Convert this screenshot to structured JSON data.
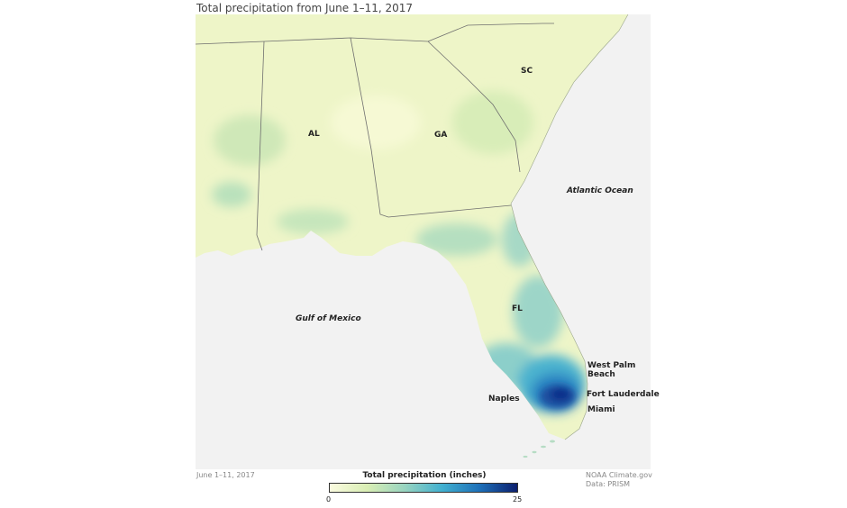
{
  "title": "Total precipitation from June 1–11, 2017",
  "map": {
    "states": [
      "AL",
      "GA",
      "SC",
      "FL"
    ],
    "water_bodies": [
      "Atlantic Ocean",
      "Gulf of Mexico"
    ],
    "cities": [
      "West Palm Beach",
      "Naples",
      "Fort Lauderdale",
      "Miami"
    ],
    "colors": {
      "land_low": "#eef5c8",
      "ocean": "#f2f2f2",
      "mid": "#7ccad2",
      "high": "#0f2d8a"
    }
  },
  "footer": {
    "date": "June 1–11, 2017",
    "credit": "NOAA Climate.gov",
    "data_source": "Data: PRISM"
  },
  "legend": {
    "title": "Total precipitation (inches)",
    "min": "0",
    "max": "25",
    "color_stops": [
      "#fbfbe0",
      "#d9eeb4",
      "#98d4c0",
      "#41b0d0",
      "#1d6fb8",
      "#0c1f6e"
    ]
  }
}
